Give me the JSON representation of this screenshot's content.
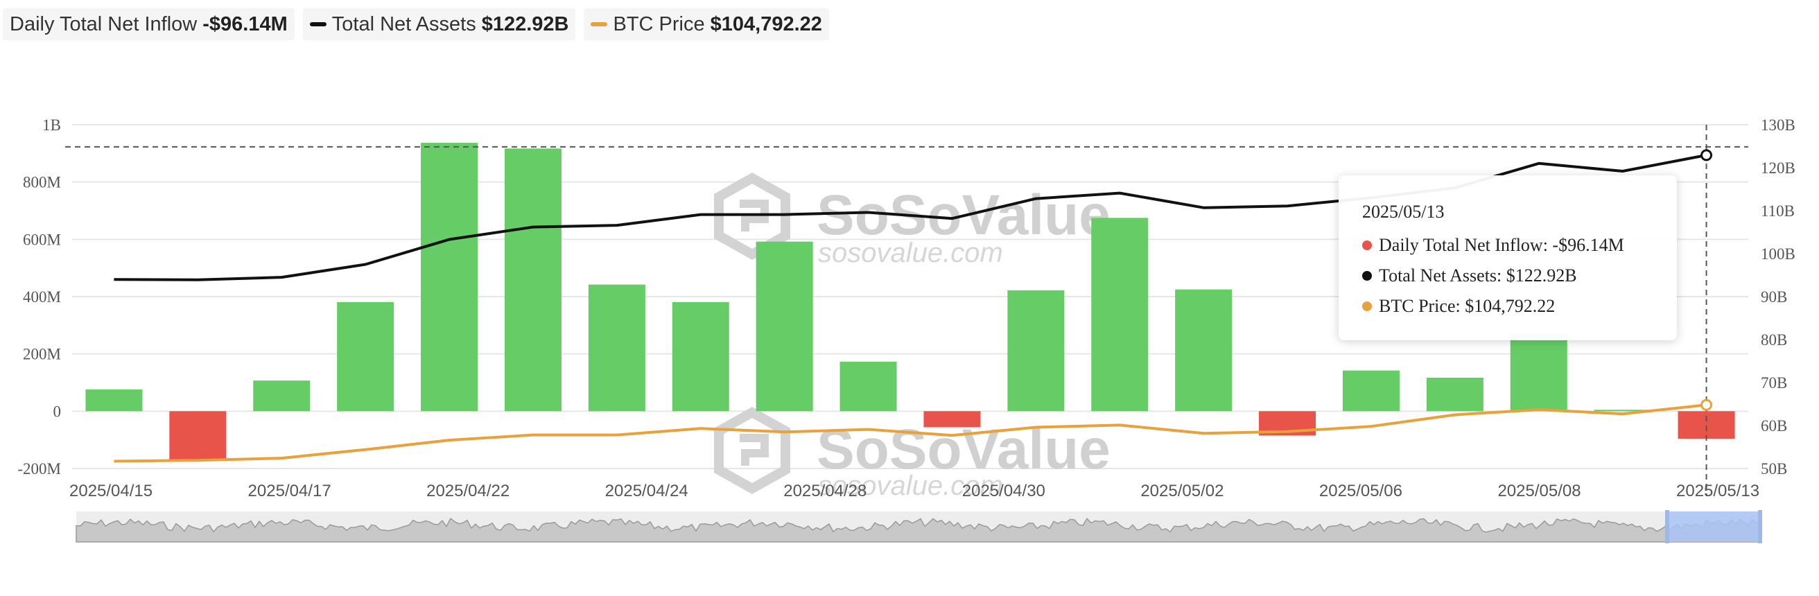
{
  "legend": {
    "inflow": {
      "label": "Daily Total Net Inflow",
      "value": "-$96.14M",
      "color": "#e8534a"
    },
    "assets": {
      "label": "Total Net Assets",
      "value": "$122.92B",
      "color": "#111111"
    },
    "btc": {
      "label": "BTC Price",
      "value": "$104,792.22",
      "color": "#e9a13b"
    }
  },
  "tooltip": {
    "date": "2025/05/13",
    "inflow": "Daily Total Net Inflow: -$96.14M",
    "assets": "Total Net Assets: $122.92B",
    "btc": "BTC Price: $104,792.22"
  },
  "watermark": {
    "brand": "SoSoValue",
    "url": "sosovalue.com"
  },
  "chart_data": {
    "type": "bar",
    "colors": {
      "positive": "#66cc66",
      "negative": "#e8534a",
      "assets_line": "#111111",
      "btc_line": "#e9a13b",
      "grid": "#e6e6e6",
      "scroll_highlight": "#a8c4f5"
    },
    "x_tick_labels": [
      "2025/04/15",
      "2025/04/17",
      "2025/04/22",
      "2025/04/24",
      "2025/04/28",
      "2025/04/30",
      "2025/05/02",
      "2025/05/06",
      "2025/05/08",
      "2025/05/13"
    ],
    "left_axis": {
      "ticks": [
        "1B",
        "800M",
        "600M",
        "400M",
        "200M",
        "0",
        "-200M"
      ],
      "ylim": [
        -200,
        1000
      ],
      "unit": "M"
    },
    "right_axis": {
      "ticks": [
        "130B",
        "120B",
        "110B",
        "100B",
        "90B",
        "80B",
        "70B",
        "60B",
        "50B"
      ],
      "ylim": [
        50,
        130
      ],
      "unit": "B"
    },
    "series": [
      {
        "name": "Daily Total Net Inflow",
        "type": "bar",
        "values": [
          76,
          -170,
          107,
          381,
          937,
          917,
          442,
          381,
          592,
          173,
          -56,
          422,
          675,
          425,
          -85,
          142,
          117,
          267,
          5,
          -96
        ]
      },
      {
        "name": "Total Net Assets",
        "type": "line",
        "values": [
          94.0,
          93.9,
          94.5,
          97.5,
          103.3,
          106.2,
          106.6,
          109.1,
          109.1,
          109.6,
          108.2,
          112.8,
          114.1,
          110.7,
          111.1,
          113.0,
          115.3,
          121.0,
          119.2,
          122.92
        ]
      },
      {
        "name": "BTC Price",
        "type": "line",
        "values": [
          51.7,
          51.9,
          52.4,
          54.4,
          56.6,
          57.8,
          57.8,
          59.3,
          58.5,
          59.1,
          57.7,
          59.6,
          60.1,
          58.2,
          58.6,
          59.8,
          62.5,
          63.7,
          62.7,
          64.8
        ]
      }
    ],
    "highlight_index": 19
  }
}
